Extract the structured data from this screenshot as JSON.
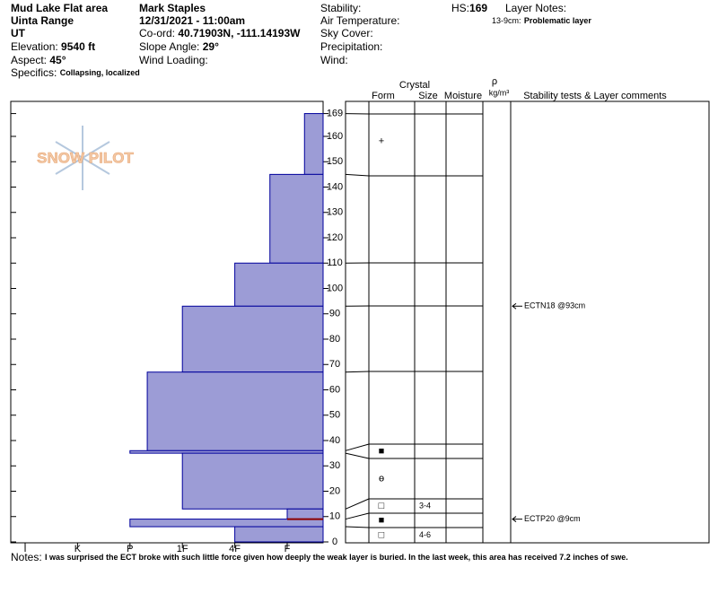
{
  "header": {
    "location": "Mud Lake Flat area",
    "range": "Uinta Range",
    "state": "UT",
    "elevation_label": "Elevation:",
    "elevation": "9540 ft",
    "aspect_label": "Aspect:",
    "aspect": "45°",
    "specifics_label": "Specifics:",
    "specifics": "Collapsing, localized",
    "observer": "Mark Staples",
    "datetime": "12/31/2021 - 11:00am",
    "coord_label": "Co-ord:",
    "coord": "40.71903N, -111.14193W",
    "slope_label": "Slope Angle:",
    "slope": "29°",
    "wind_loading": "Wind Loading:",
    "stability": "Stability:",
    "air_temp": "Air Temperature:",
    "sky": "Sky Cover:",
    "precip": "Precipitation:",
    "wind": "Wind:",
    "hs_label": "HS:",
    "hs": "169",
    "layer_notes": "Layer Notes:",
    "note_range": "13-9cm:",
    "note_text": "Problematic layer"
  },
  "columns": {
    "crystal": "Crystal",
    "form": "Form",
    "size": "Size",
    "moisture": "Moisture",
    "rho": "ρ",
    "density": "kg/m³",
    "comments": "Stability tests & Layer comments"
  },
  "logo": "SNOW PILOT",
  "profile": {
    "yticks": [
      0,
      10,
      20,
      30,
      40,
      50,
      60,
      70,
      80,
      90,
      100,
      110,
      120,
      130,
      140,
      150,
      160,
      169
    ],
    "hardness_ticks": [
      {
        "value": 6,
        "label": "I"
      },
      {
        "value": 5,
        "label": "K"
      },
      {
        "value": 4,
        "label": "P"
      },
      {
        "value": 3,
        "label": "1F"
      },
      {
        "value": 2,
        "label": "4F"
      },
      {
        "value": 1,
        "label": "F"
      }
    ],
    "layers": [
      {
        "top": 169,
        "bottom": 145,
        "hardness": 0.67,
        "form": "+"
      },
      {
        "top": 145,
        "bottom": 110,
        "hardness": 1.33
      },
      {
        "top": 110,
        "bottom": 93,
        "hardness": 2
      },
      {
        "top": 93,
        "bottom": 67,
        "hardness": 3
      },
      {
        "top": 67,
        "bottom": 36,
        "hardness": 3.67
      },
      {
        "top": 36,
        "bottom": 35,
        "hardness": 4,
        "form": "■"
      },
      {
        "top": 35,
        "bottom": 13,
        "hardness": 3,
        "form": "ө"
      },
      {
        "top": 13,
        "bottom": 9,
        "hardness": 1,
        "form": "□",
        "size": "3-4"
      },
      {
        "top": 9,
        "bottom": 6,
        "hardness": 4,
        "form": "■"
      },
      {
        "top": 6,
        "bottom": 0,
        "hardness": 2,
        "form": "□",
        "size": "4-6"
      }
    ],
    "problem_height": 9,
    "tests": [
      {
        "label": "ECTN18 @93cm",
        "height": 93
      },
      {
        "label": "ECTP20 @9cm",
        "height": 9
      }
    ]
  },
  "notes_label": "Notes:",
  "notes": "I was surprised the ECT broke with such little force given how deeply the weak layer is buried. In the last week, this area has received 7.2 inches of swe."
}
